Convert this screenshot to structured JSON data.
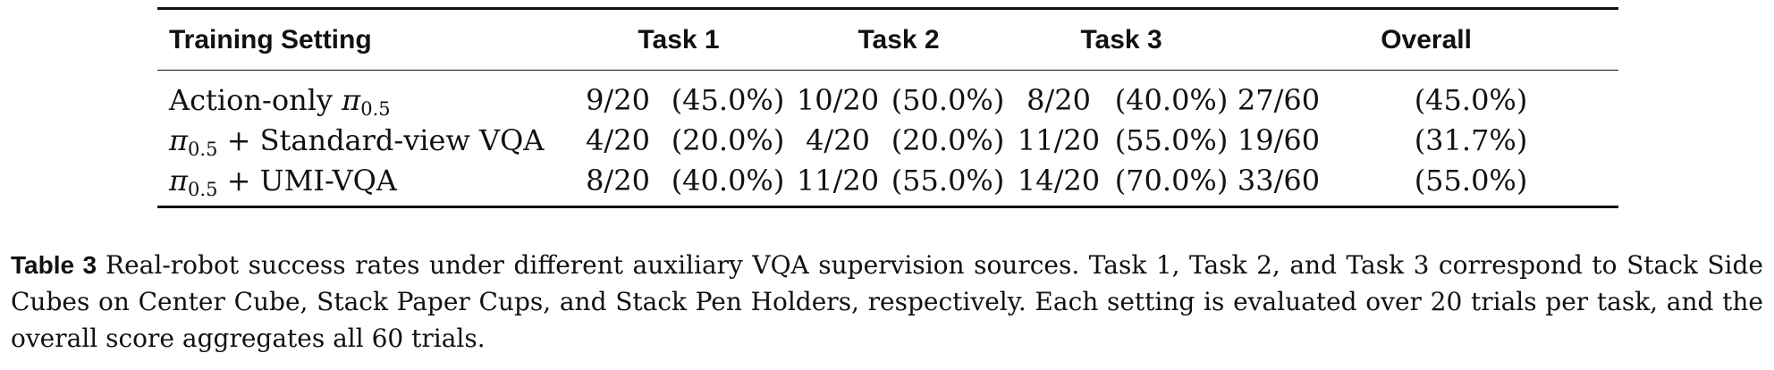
{
  "table": {
    "headers": {
      "setting": "Training Setting",
      "task1": "Task 1",
      "task2": "Task 2",
      "task3": "Task 3",
      "overall": "Overall"
    },
    "rows": [
      {
        "setting": {
          "prefix": "Action-only ",
          "pi": "π",
          "sub": "0.5",
          "suffix": ""
        },
        "task1": {
          "count": "9/20",
          "pct": "(45.0%)"
        },
        "task2": {
          "count": "10/20",
          "pct": "(50.0%)"
        },
        "task3": {
          "count": "8/20",
          "pct": "(40.0%)"
        },
        "overall": {
          "count": "27/60",
          "pct": "(45.0%)"
        }
      },
      {
        "setting": {
          "prefix": "",
          "pi": "π",
          "sub": "0.5",
          "suffix": " + Standard-view VQA"
        },
        "task1": {
          "count": "4/20",
          "pct": "(20.0%)"
        },
        "task2": {
          "count": "4/20",
          "pct": "(20.0%)"
        },
        "task3": {
          "count": "11/20",
          "pct": "(55.0%)"
        },
        "overall": {
          "count": "19/60",
          "pct": "(31.7%)"
        }
      },
      {
        "setting": {
          "prefix": "",
          "pi": "π",
          "sub": "0.5",
          "suffix": " + UMI-VQA"
        },
        "task1": {
          "count": "8/20",
          "pct": "(40.0%)"
        },
        "task2": {
          "count": "11/20",
          "pct": "(55.0%)"
        },
        "task3": {
          "count": "14/20",
          "pct": "(70.0%)"
        },
        "overall": {
          "count": "33/60",
          "pct": "(55.0%)"
        }
      }
    ]
  },
  "caption": {
    "label": "Table 3",
    "text": "Real-robot success rates under different auxiliary VQA supervision sources. Task 1, Task 2, and Task 3 correspond to Stack Side Cubes on Center Cube, Stack Paper Cups, and Stack Pen Holders, respectively. Each setting is evaluated over 20 trials per task, and the overall score aggregates all 60 trials."
  }
}
